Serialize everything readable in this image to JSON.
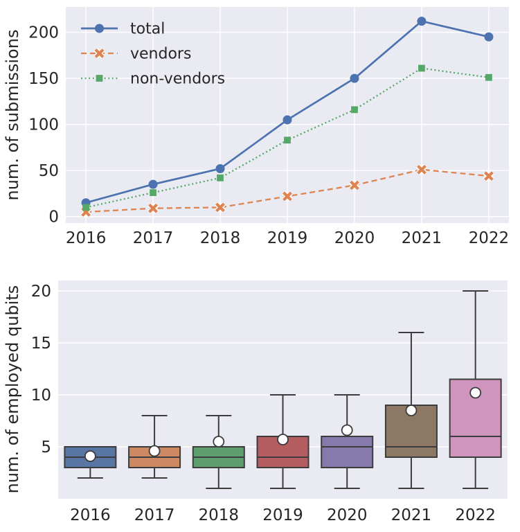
{
  "figure": {
    "background": "#ffffff",
    "axes_background": "#eaeaf2",
    "grid_color": "#ffffff",
    "text_color": "#262626",
    "box_edge_color": "#3c3c3c",
    "mean_marker_fill": "#ffffff"
  },
  "chart_data": [
    {
      "type": "line",
      "title": "",
      "xlabel": "",
      "ylabel": "num. of submissions",
      "x": [
        2016,
        2017,
        2018,
        2019,
        2020,
        2021,
        2022
      ],
      "xticks": [
        "2016",
        "2017",
        "2018",
        "2019",
        "2020",
        "2021",
        "2022"
      ],
      "yticks": [
        0,
        50,
        100,
        150,
        200
      ],
      "xlim": [
        2015.7,
        2022.3
      ],
      "ylim": [
        -7,
        227.5
      ],
      "grid": true,
      "legend_position": "upper left",
      "series": [
        {
          "name": "total",
          "color": "#4c72b0",
          "linestyle": "solid",
          "marker": "circle",
          "values": [
            15,
            35,
            52,
            105,
            150,
            212,
            195
          ]
        },
        {
          "name": "vendors",
          "color": "#dd8452",
          "linestyle": "dashed",
          "marker": "x",
          "values": [
            5,
            9,
            10,
            22,
            34,
            51,
            44
          ]
        },
        {
          "name": "non-vendors",
          "color": "#55a868",
          "linestyle": "dotted",
          "marker": "square",
          "values": [
            10,
            26,
            42,
            83,
            116,
            161,
            151
          ]
        }
      ]
    },
    {
      "type": "boxplot",
      "title": "",
      "xlabel": "",
      "ylabel": "num. of employed qubits",
      "categories": [
        "2016",
        "2017",
        "2018",
        "2019",
        "2020",
        "2021",
        "2022"
      ],
      "yticks": [
        5,
        10,
        15,
        20
      ],
      "ylim": [
        0,
        21
      ],
      "grid": true,
      "boxes": [
        {
          "year": "2016",
          "color": "#5875a4",
          "whislo": 2,
          "q1": 3,
          "med": 4,
          "q3": 5,
          "whishi": 5,
          "mean": 4.1
        },
        {
          "year": "2017",
          "color": "#cc8963",
          "whislo": 2,
          "q1": 3,
          "med": 4,
          "q3": 5,
          "whishi": 8,
          "mean": 4.6
        },
        {
          "year": "2018",
          "color": "#5f9e6e",
          "whislo": 1,
          "q1": 3,
          "med": 4,
          "q3": 5,
          "whishi": 8,
          "mean": 5.5
        },
        {
          "year": "2019",
          "color": "#b55d60",
          "whislo": 1,
          "q1": 3,
          "med": 4,
          "q3": 6,
          "whishi": 10,
          "mean": 5.7
        },
        {
          "year": "2020",
          "color": "#857aab",
          "whislo": 1,
          "q1": 3,
          "med": 5,
          "q3": 6,
          "whishi": 10,
          "mean": 6.6
        },
        {
          "year": "2021",
          "color": "#8d7866",
          "whislo": 1,
          "q1": 4,
          "med": 5,
          "q3": 9,
          "whishi": 16,
          "mean": 8.5
        },
        {
          "year": "2022",
          "color": "#d095bf",
          "whislo": 1,
          "q1": 4,
          "med": 6,
          "q3": 11.5,
          "whishi": 20,
          "mean": 10.2
        }
      ]
    }
  ]
}
